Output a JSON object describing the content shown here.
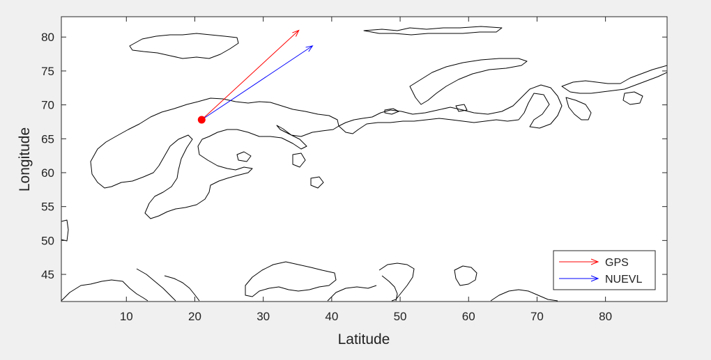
{
  "chart_data": {
    "type": "map-quiver",
    "xlabel": "Latitude",
    "ylabel": "Longitude",
    "xlim": [
      0.5,
      89
    ],
    "ylim": [
      41,
      83
    ],
    "xticks": [
      10,
      20,
      30,
      40,
      50,
      60,
      70,
      80
    ],
    "yticks": [
      45,
      50,
      55,
      60,
      65,
      70,
      75,
      80
    ],
    "grid": false,
    "legend_position": "bottom-right",
    "origin": {
      "x": 21,
      "y": 67.8,
      "color": "#ff0000"
    },
    "series": [
      {
        "name": "GPS",
        "color": "#ff0000",
        "from": [
          21,
          67.8
        ],
        "to": [
          35.2,
          81.0
        ]
      },
      {
        "name": "NUEVL",
        "color": "#0000ff",
        "from": [
          21,
          67.8
        ],
        "to": [
          37.2,
          78.7
        ]
      }
    ]
  }
}
